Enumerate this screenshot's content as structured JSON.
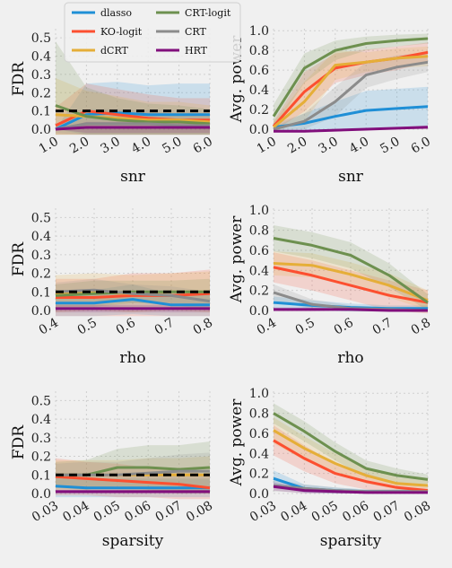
{
  "colors": {
    "background": "#f0f0f0",
    "plot_background": "#f0f0f0",
    "grid": "#cfcfcf",
    "threshold_line": "#000000"
  },
  "legend": {
    "placement": "top-center, over first row",
    "entries": [
      {
        "name": "dlasso",
        "color": "#1f8fd6"
      },
      {
        "name": "KO-logit",
        "color": "#fc4f30"
      },
      {
        "name": "dCRT",
        "color": "#e5ae38"
      },
      {
        "name": "CRT-logit",
        "color": "#6d904f"
      },
      {
        "name": "CRT",
        "color": "#8b8b8b"
      },
      {
        "name": "HRT",
        "color": "#810f7c"
      }
    ]
  },
  "chart_data": [
    {
      "type": "line",
      "panel": "fdr-snr",
      "xlabel": "snr",
      "ylabel": "FDR",
      "x_ticks": [
        "1.0",
        "2.0",
        "3.0",
        "4.0",
        "5.0",
        "6.0"
      ],
      "y_ticks": [
        "0.0",
        "0.1",
        "0.2",
        "0.3",
        "0.4",
        "0.5"
      ],
      "ylim": [
        0,
        0.55
      ],
      "grid": true,
      "threshold": 0.1,
      "series": [
        {
          "name": "dlasso",
          "values": [
            0.0,
            0.08,
            0.09,
            0.08,
            0.08,
            0.08
          ],
          "band": [
            0.0,
            0.17,
            0.17,
            0.16,
            0.17,
            0.17
          ]
        },
        {
          "name": "KO-logit",
          "values": [
            0.02,
            0.1,
            0.08,
            0.06,
            0.05,
            0.05
          ],
          "band": [
            0.1,
            0.15,
            0.14,
            0.13,
            0.12,
            0.12
          ]
        },
        {
          "name": "dCRT",
          "values": [
            0.08,
            0.07,
            0.06,
            0.05,
            0.05,
            0.04
          ],
          "band": [
            0.2,
            0.14,
            0.12,
            0.1,
            0.1,
            0.09
          ]
        },
        {
          "name": "CRT-logit",
          "values": [
            0.13,
            0.07,
            0.05,
            0.04,
            0.04,
            0.03
          ],
          "band": [
            0.35,
            0.16,
            0.12,
            0.1,
            0.09,
            0.08
          ]
        },
        {
          "name": "CRT",
          "values": [
            0.0,
            0.03,
            0.03,
            0.03,
            0.02,
            0.02
          ],
          "band": [
            0.02,
            0.08,
            0.08,
            0.07,
            0.06,
            0.06
          ]
        },
        {
          "name": "HRT",
          "values": [
            0.0,
            0.01,
            0.01,
            0.01,
            0.01,
            0.01
          ],
          "band": [
            0.0,
            0.03,
            0.03,
            0.03,
            0.03,
            0.03
          ]
        }
      ]
    },
    {
      "type": "line",
      "panel": "power-snr",
      "xlabel": "snr",
      "ylabel": "Avg. power",
      "x_ticks": [
        "1.0",
        "2.0",
        "3.0",
        "4.0",
        "5.0",
        "6.0"
      ],
      "y_ticks": [
        "0.0",
        "0.2",
        "0.4",
        "0.6",
        "0.8",
        "1.0"
      ],
      "ylim": [
        0,
        1.02
      ],
      "grid": true,
      "series": [
        {
          "name": "dlasso",
          "values": [
            0.02,
            0.06,
            0.13,
            0.19,
            0.21,
            0.23
          ],
          "band": [
            0.03,
            0.1,
            0.15,
            0.2,
            0.2,
            0.2
          ]
        },
        {
          "name": "KO-logit",
          "values": [
            0.03,
            0.38,
            0.62,
            0.68,
            0.72,
            0.78
          ],
          "band": [
            0.05,
            0.2,
            0.15,
            0.13,
            0.12,
            0.1
          ]
        },
        {
          "name": "dCRT",
          "values": [
            0.02,
            0.28,
            0.65,
            0.68,
            0.72,
            0.74
          ],
          "band": [
            0.05,
            0.2,
            0.15,
            0.1,
            0.1,
            0.1
          ]
        },
        {
          "name": "CRT-logit",
          "values": [
            0.13,
            0.62,
            0.8,
            0.87,
            0.9,
            0.92
          ],
          "band": [
            0.12,
            0.15,
            0.1,
            0.07,
            0.06,
            0.05
          ]
        },
        {
          "name": "CRT",
          "values": [
            0.0,
            0.08,
            0.28,
            0.55,
            0.63,
            0.68
          ],
          "band": [
            0.02,
            0.08,
            0.15,
            0.13,
            0.12,
            0.1
          ]
        },
        {
          "name": "HRT",
          "values": [
            -0.02,
            -0.02,
            -0.01,
            0.0,
            0.01,
            0.02
          ],
          "band": [
            0.01,
            0.01,
            0.01,
            0.01,
            0.01,
            0.02
          ]
        }
      ]
    },
    {
      "type": "line",
      "panel": "fdr-rho",
      "xlabel": "rho",
      "ylabel": "FDR",
      "x_ticks": [
        "0.4",
        "0.5",
        "0.6",
        "0.7",
        "0.8"
      ],
      "y_ticks": [
        "0.0",
        "0.1",
        "0.2",
        "0.3",
        "0.4",
        "0.5"
      ],
      "ylim": [
        0,
        0.55
      ],
      "grid": true,
      "threshold": 0.1,
      "series": [
        {
          "name": "dlasso",
          "values": [
            0.04,
            0.04,
            0.06,
            0.03,
            0.03
          ],
          "band": [
            0.07,
            0.07,
            0.08,
            0.06,
            0.06
          ]
        },
        {
          "name": "KO-logit",
          "values": [
            0.07,
            0.07,
            0.08,
            0.08,
            0.09
          ],
          "band": [
            0.1,
            0.1,
            0.12,
            0.12,
            0.13
          ]
        },
        {
          "name": "dCRT",
          "values": [
            0.09,
            0.1,
            0.09,
            0.1,
            0.1
          ],
          "band": [
            0.1,
            0.1,
            0.1,
            0.1,
            0.11
          ]
        },
        {
          "name": "CRT-logit",
          "values": [
            0.08,
            0.09,
            0.1,
            0.1,
            0.1
          ],
          "band": [
            0.06,
            0.07,
            0.06,
            0.06,
            0.07
          ]
        },
        {
          "name": "CRT",
          "values": [
            0.1,
            0.11,
            0.09,
            0.08,
            0.05
          ],
          "band": [
            0.05,
            0.06,
            0.05,
            0.05,
            0.05
          ]
        },
        {
          "name": "HRT",
          "values": [
            0.01,
            0.01,
            0.01,
            0.01,
            0.01
          ],
          "band": [
            0.02,
            0.02,
            0.02,
            0.02,
            0.02
          ]
        }
      ]
    },
    {
      "type": "line",
      "panel": "power-rho",
      "xlabel": "rho",
      "ylabel": "Avg. power",
      "x_ticks": [
        "0.4",
        "0.5",
        "0.6",
        "0.7",
        "0.8"
      ],
      "y_ticks": [
        "0.0",
        "0.2",
        "0.4",
        "0.6",
        "0.8",
        "1.0"
      ],
      "ylim": [
        0,
        1.02
      ],
      "grid": true,
      "series": [
        {
          "name": "dlasso",
          "values": [
            0.08,
            0.05,
            0.03,
            0.02,
            0.02
          ],
          "band": [
            0.06,
            0.05,
            0.04,
            0.03,
            0.03
          ]
        },
        {
          "name": "KO-logit",
          "values": [
            0.43,
            0.35,
            0.25,
            0.15,
            0.08
          ],
          "band": [
            0.15,
            0.15,
            0.15,
            0.15,
            0.12
          ]
        },
        {
          "name": "dCRT",
          "values": [
            0.47,
            0.45,
            0.36,
            0.25,
            0.1
          ],
          "band": [
            0.12,
            0.12,
            0.12,
            0.12,
            0.1
          ]
        },
        {
          "name": "CRT-logit",
          "values": [
            0.72,
            0.65,
            0.55,
            0.35,
            0.08
          ],
          "band": [
            0.13,
            0.13,
            0.13,
            0.12,
            0.08
          ]
        },
        {
          "name": "CRT",
          "values": [
            0.18,
            0.06,
            0.02,
            0.01,
            0.0
          ],
          "band": [
            0.08,
            0.05,
            0.03,
            0.02,
            0.02
          ]
        },
        {
          "name": "HRT",
          "values": [
            0.01,
            0.01,
            0.01,
            0.0,
            0.0
          ],
          "band": [
            0.02,
            0.02,
            0.01,
            0.01,
            0.01
          ]
        }
      ]
    },
    {
      "type": "line",
      "panel": "fdr-sparsity",
      "xlabel": "sparsity",
      "ylabel": "FDR",
      "x_ticks": [
        "0.03",
        "0.04",
        "0.05",
        "0.06",
        "0.07",
        "0.08"
      ],
      "y_ticks": [
        "0.0",
        "0.1",
        "0.2",
        "0.3",
        "0.4",
        "0.5"
      ],
      "ylim": [
        0,
        0.55
      ],
      "grid": true,
      "threshold": 0.1,
      "series": [
        {
          "name": "dlasso",
          "values": [
            0.04,
            0.03,
            0.03,
            0.03,
            0.03,
            0.03
          ],
          "band": [
            0.06,
            0.05,
            0.05,
            0.05,
            0.05,
            0.05
          ]
        },
        {
          "name": "KO-logit",
          "values": [
            0.09,
            0.08,
            0.07,
            0.06,
            0.05,
            0.03
          ],
          "band": [
            0.1,
            0.09,
            0.09,
            0.08,
            0.08,
            0.07
          ]
        },
        {
          "name": "dCRT",
          "values": [
            0.1,
            0.1,
            0.1,
            0.1,
            0.1,
            0.1
          ],
          "band": [
            0.08,
            0.08,
            0.08,
            0.09,
            0.09,
            0.1
          ]
        },
        {
          "name": "CRT-logit",
          "values": [
            0.1,
            0.1,
            0.14,
            0.14,
            0.13,
            0.14
          ],
          "band": [
            0.07,
            0.08,
            0.1,
            0.12,
            0.13,
            0.14
          ]
        },
        {
          "name": "CRT",
          "values": [
            0.1,
            0.1,
            0.1,
            0.11,
            0.12,
            0.12
          ],
          "band": [
            0.06,
            0.07,
            0.07,
            0.08,
            0.09,
            0.1
          ]
        },
        {
          "name": "HRT",
          "values": [
            0.01,
            0.01,
            0.01,
            0.01,
            0.01,
            0.01
          ],
          "band": [
            0.01,
            0.01,
            0.01,
            0.01,
            0.01,
            0.01
          ]
        }
      ]
    },
    {
      "type": "line",
      "panel": "power-sparsity",
      "xlabel": "sparsity",
      "ylabel": "Avg. power",
      "x_ticks": [
        "0.03",
        "0.04",
        "0.05",
        "0.06",
        "0.07",
        "0.08"
      ],
      "y_ticks": [
        "0.0",
        "0.2",
        "0.4",
        "0.6",
        "0.8",
        "1.0"
      ],
      "ylim": [
        0,
        1.02
      ],
      "grid": true,
      "series": [
        {
          "name": "dlasso",
          "values": [
            0.15,
            0.05,
            0.03,
            0.02,
            0.02,
            0.02
          ],
          "band": [
            0.08,
            0.04,
            0.03,
            0.02,
            0.02,
            0.02
          ]
        },
        {
          "name": "KO-logit",
          "values": [
            0.53,
            0.35,
            0.2,
            0.12,
            0.06,
            0.03
          ],
          "band": [
            0.15,
            0.13,
            0.1,
            0.08,
            0.05,
            0.03
          ]
        },
        {
          "name": "dCRT",
          "values": [
            0.63,
            0.45,
            0.3,
            0.18,
            0.1,
            0.08
          ],
          "band": [
            0.13,
            0.12,
            0.1,
            0.08,
            0.06,
            0.05
          ]
        },
        {
          "name": "CRT-logit",
          "values": [
            0.8,
            0.62,
            0.42,
            0.25,
            0.18,
            0.14
          ],
          "band": [
            0.1,
            0.1,
            0.09,
            0.08,
            0.07,
            0.05
          ]
        },
        {
          "name": "CRT",
          "values": [
            0.08,
            0.05,
            0.03,
            0.02,
            0.02,
            0.02
          ],
          "band": [
            0.06,
            0.04,
            0.03,
            0.02,
            0.02,
            0.02
          ]
        },
        {
          "name": "HRT",
          "values": [
            0.07,
            0.03,
            0.02,
            0.01,
            0.01,
            0.01
          ],
          "band": [
            0.04,
            0.03,
            0.02,
            0.01,
            0.01,
            0.01
          ]
        }
      ]
    }
  ]
}
